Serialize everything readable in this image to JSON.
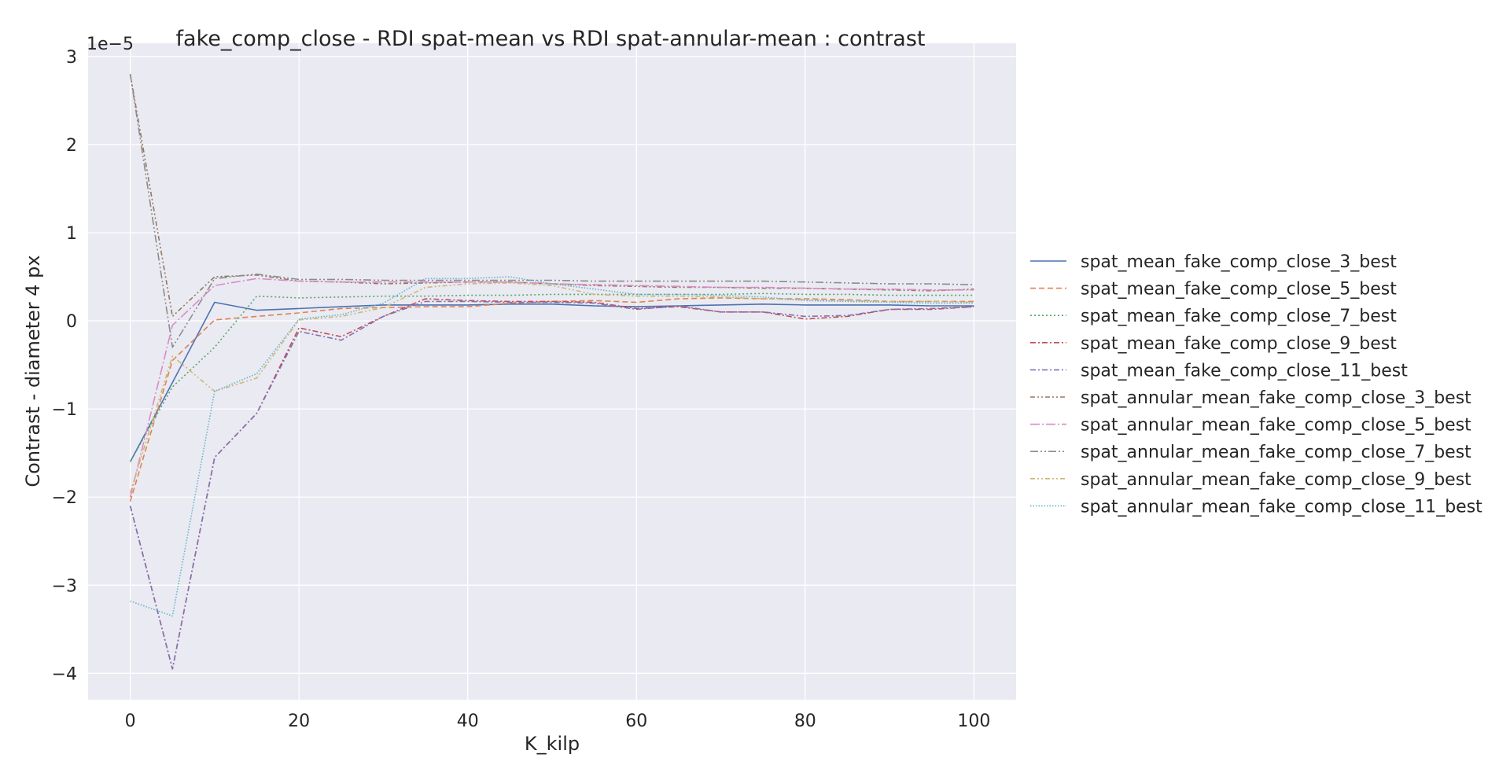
{
  "chart_data": {
    "type": "line",
    "title": "fake_comp_close - RDI spat-mean vs RDI spat-annular-mean : contrast",
    "xlabel": "K_kilp",
    "ylabel": "Contrast - diameter 4 px",
    "y_offset_text": "1e−5",
    "y_scale": 1e-05,
    "xlim": [
      -5,
      105
    ],
    "ylim": [
      -4.3,
      3.15
    ],
    "x_ticks": [
      0,
      20,
      40,
      60,
      80,
      100
    ],
    "x_tick_labels": [
      "0",
      "20",
      "40",
      "60",
      "80",
      "100"
    ],
    "y_ticks": [
      -4,
      -3,
      -2,
      -1,
      0,
      1,
      2,
      3
    ],
    "y_tick_labels": [
      "−4",
      "−3",
      "−2",
      "−1",
      "0",
      "1",
      "2",
      "3"
    ],
    "grid": true,
    "legend_position": "outside-right",
    "background": "#eaeaf2",
    "x": [
      0,
      5,
      10,
      15,
      20,
      25,
      30,
      35,
      40,
      45,
      50,
      55,
      60,
      65,
      70,
      75,
      80,
      85,
      90,
      95,
      100
    ],
    "series": [
      {
        "name": "spat_mean_fake_comp_close_3_best",
        "color": "#4c72b0",
        "dash": "solid",
        "values": [
          -1.6,
          -0.7,
          0.21,
          0.12,
          0.14,
          0.16,
          0.18,
          0.18,
          0.18,
          0.19,
          0.19,
          0.17,
          0.16,
          0.17,
          0.18,
          0.19,
          0.18,
          0.18,
          0.18,
          0.17,
          0.17
        ]
      },
      {
        "name": "spat_mean_fake_comp_close_5_best",
        "color": "#dd8452",
        "dash": "dashed",
        "values": [
          -2.05,
          -0.45,
          0.01,
          0.05,
          0.09,
          0.14,
          0.15,
          0.16,
          0.16,
          0.2,
          0.22,
          0.23,
          0.21,
          0.25,
          0.26,
          0.25,
          0.25,
          0.24,
          0.22,
          0.22,
          0.22
        ]
      },
      {
        "name": "spat_mean_fake_comp_close_7_best",
        "color": "#55a868",
        "dash": "dotted",
        "values": [
          -1.6,
          -0.75,
          -0.3,
          0.28,
          0.26,
          0.27,
          0.28,
          0.28,
          0.29,
          0.29,
          0.3,
          0.3,
          0.3,
          0.3,
          0.3,
          0.31,
          0.3,
          0.3,
          0.29,
          0.29,
          0.29
        ]
      },
      {
        "name": "spat_mean_fake_comp_close_9_best",
        "color": "#c44e52",
        "dash": "dashdot",
        "values": [
          -2.1,
          -3.95,
          -1.55,
          -1.05,
          -0.08,
          -0.18,
          0.05,
          0.25,
          0.23,
          0.22,
          0.22,
          0.21,
          0.14,
          0.16,
          0.1,
          0.1,
          0.02,
          0.05,
          0.13,
          0.13,
          0.16
        ]
      },
      {
        "name": "spat_mean_fake_comp_close_11_best",
        "color": "#8172b3",
        "dash": "dashdot",
        "values": [
          -2.1,
          -3.95,
          -1.55,
          -1.05,
          -0.12,
          -0.22,
          0.05,
          0.22,
          0.22,
          0.21,
          0.21,
          0.2,
          0.13,
          0.17,
          0.1,
          0.1,
          0.05,
          0.06,
          0.13,
          0.14,
          0.16
        ]
      },
      {
        "name": "spat_annular_mean_fake_comp_close_3_best",
        "color": "#937860",
        "dash": "dashdotdot",
        "values": [
          2.8,
          0.05,
          0.5,
          0.52,
          0.45,
          0.44,
          0.42,
          0.43,
          0.44,
          0.44,
          0.42,
          0.4,
          0.39,
          0.38,
          0.38,
          0.37,
          0.37,
          0.36,
          0.35,
          0.34,
          0.36
        ]
      },
      {
        "name": "spat_annular_mean_fake_comp_close_5_best",
        "color": "#da8bc3",
        "dash": "longdashdot",
        "values": [
          -2.0,
          -0.05,
          0.4,
          0.48,
          0.45,
          0.44,
          0.44,
          0.44,
          0.44,
          0.44,
          0.42,
          0.41,
          0.4,
          0.39,
          0.38,
          0.38,
          0.37,
          0.36,
          0.36,
          0.35,
          0.35
        ]
      },
      {
        "name": "spat_annular_mean_fake_comp_close_7_best",
        "color": "#8c8c8c",
        "dash": "longdashdotdot",
        "values": [
          2.8,
          -0.3,
          0.48,
          0.53,
          0.47,
          0.47,
          0.46,
          0.46,
          0.46,
          0.46,
          0.46,
          0.45,
          0.45,
          0.45,
          0.45,
          0.45,
          0.44,
          0.43,
          0.42,
          0.42,
          0.41
        ]
      },
      {
        "name": "spat_annular_mean_fake_comp_close_9_best",
        "color": "#ccb974",
        "dash": "dashdotdot",
        "values": [
          -1.95,
          -0.4,
          -0.8,
          -0.65,
          0.01,
          0.05,
          0.15,
          0.38,
          0.42,
          0.43,
          0.4,
          0.3,
          0.28,
          0.28,
          0.27,
          0.25,
          0.24,
          0.23,
          0.22,
          0.22,
          0.21
        ]
      },
      {
        "name": "spat_annular_mean_fake_comp_close_11_best",
        "color": "#64b5cd",
        "dash": "densedot",
        "values": [
          -3.18,
          -3.35,
          -0.8,
          -0.6,
          0.02,
          0.07,
          0.2,
          0.48,
          0.48,
          0.5,
          0.42,
          0.36,
          0.3,
          0.3,
          0.29,
          0.27,
          0.23,
          0.22,
          0.21,
          0.2,
          0.2
        ]
      }
    ]
  }
}
